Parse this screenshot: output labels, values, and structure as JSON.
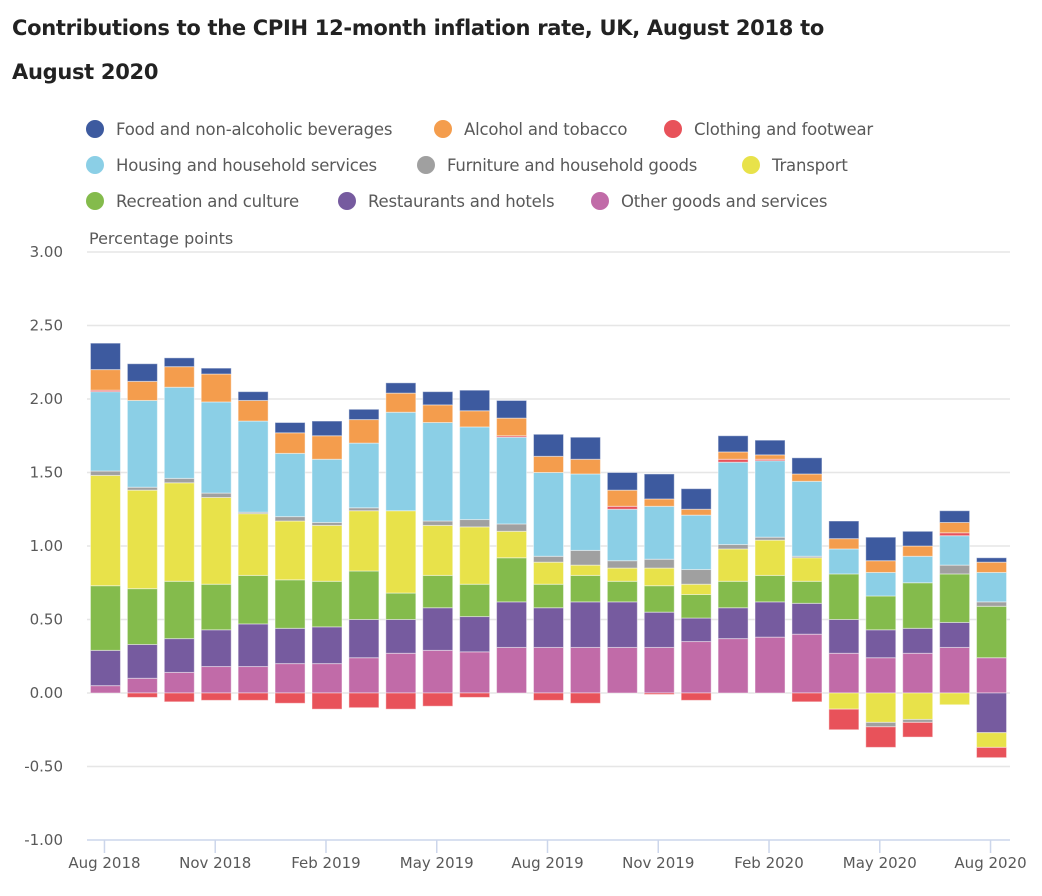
{
  "header": {
    "title": "Contributions to the CPIH 12-month inflation rate, UK, August 2018 to August 2020"
  },
  "legend": [
    {
      "name": "Food and non-alcoholic beverages",
      "color": "#3d5a9f"
    },
    {
      "name": "Alcohol and tobacco",
      "color": "#f49d4d"
    },
    {
      "name": "Clothing and footwear",
      "color": "#e8525a"
    },
    {
      "name": "Housing and household services",
      "color": "#8bcfe6"
    },
    {
      "name": "Furniture and household goods",
      "color": "#a0a0a0"
    },
    {
      "name": "Transport",
      "color": "#e8e24a"
    },
    {
      "name": "Recreation and culture",
      "color": "#84bb4c"
    },
    {
      "name": "Restaurants and hotels",
      "color": "#765b9f"
    },
    {
      "name": "Other goods and services",
      "color": "#c16ba8"
    }
  ],
  "chart_data": {
    "type": "bar",
    "stacked": true,
    "title": "Contributions to the CPIH 12-month inflation rate, UK, August 2018 to August 2020",
    "xlabel": "",
    "ylabel": "Percentage points",
    "ylim": [
      -1.0,
      3.0
    ],
    "yticks": [
      3.0,
      2.5,
      2.0,
      1.5,
      1.0,
      0.5,
      0.0,
      -0.5,
      -1.0
    ],
    "ytick_labels": [
      "3.00",
      "2.50",
      "2.00",
      "1.50",
      "1.00",
      "0.50",
      "0.00",
      "-0.50",
      "-1.00"
    ],
    "grid": true,
    "legend_position": "top",
    "categories": [
      "Aug 2018",
      "Sep 2018",
      "Oct 2018",
      "Nov 2018",
      "Dec 2018",
      "Jan 2019",
      "Feb 2019",
      "Mar 2019",
      "Apr 2019",
      "May 2019",
      "Jun 2019",
      "Jul 2019",
      "Aug 2019",
      "Sep 2019",
      "Oct 2019",
      "Nov 2019",
      "Dec 2019",
      "Jan 2020",
      "Feb 2020",
      "Mar 2020",
      "Apr 2020",
      "May 2020",
      "Jun 2020",
      "Jul 2020",
      "Aug 2020"
    ],
    "xtick_labels": [
      {
        "index": 0,
        "label": "Aug 2018"
      },
      {
        "index": 3,
        "label": "Nov 2018"
      },
      {
        "index": 6,
        "label": "Feb 2019"
      },
      {
        "index": 9,
        "label": "May 2019"
      },
      {
        "index": 12,
        "label": "Aug 2019"
      },
      {
        "index": 15,
        "label": "Nov 2019"
      },
      {
        "index": 18,
        "label": "Feb 2020"
      },
      {
        "index": 21,
        "label": "May 2020"
      },
      {
        "index": 24,
        "label": "Aug 2020"
      }
    ],
    "stack_order": [
      "Other goods and services",
      "Restaurants and hotels",
      "Recreation and culture",
      "Transport",
      "Furniture and household goods",
      "Housing and household services",
      "Clothing and footwear",
      "Alcohol and tobacco",
      "Food and non-alcoholic beverages"
    ],
    "series": [
      {
        "name": "Food and non-alcoholic beverages",
        "color": "#3d5a9f",
        "values": [
          0.18,
          0.12,
          0.06,
          0.04,
          0.06,
          0.07,
          0.1,
          0.07,
          0.07,
          0.09,
          0.14,
          0.12,
          0.15,
          0.15,
          0.12,
          0.17,
          0.14,
          0.11,
          0.1,
          0.11,
          0.12,
          0.16,
          0.1,
          0.08,
          0.03
        ]
      },
      {
        "name": "Alcohol and tobacco",
        "color": "#f49d4d",
        "values": [
          0.14,
          0.13,
          0.14,
          0.19,
          0.14,
          0.14,
          0.16,
          0.16,
          0.13,
          0.12,
          0.11,
          0.12,
          0.11,
          0.1,
          0.11,
          0.05,
          0.04,
          0.05,
          0.03,
          0.05,
          0.07,
          0.08,
          0.07,
          0.07,
          0.07
        ]
      },
      {
        "name": "Clothing and footwear",
        "color": "#e8525a",
        "values": [
          0.01,
          -0.03,
          -0.06,
          -0.05,
          -0.05,
          -0.07,
          -0.11,
          -0.1,
          -0.11,
          -0.09,
          -0.03,
          0.01,
          -0.05,
          -0.07,
          0.02,
          -0.01,
          -0.05,
          0.02,
          0.01,
          -0.06,
          -0.14,
          -0.14,
          -0.1,
          0.02,
          -0.07
        ]
      },
      {
        "name": "Housing and household services",
        "color": "#8bcfe6",
        "values": [
          0.54,
          0.59,
          0.62,
          0.62,
          0.62,
          0.43,
          0.43,
          0.44,
          0.67,
          0.67,
          0.63,
          0.59,
          0.57,
          0.52,
          0.35,
          0.36,
          0.37,
          0.56,
          0.52,
          0.51,
          0.17,
          0.16,
          0.18,
          0.2,
          0.2
        ]
      },
      {
        "name": "Furniture and household goods",
        "color": "#a0a0a0",
        "values": [
          0.03,
          0.02,
          0.03,
          0.03,
          0.01,
          0.03,
          0.02,
          0.02,
          0.0,
          0.03,
          0.05,
          0.05,
          0.04,
          0.1,
          0.05,
          0.06,
          0.1,
          0.03,
          0.02,
          0.01,
          0.0,
          -0.03,
          -0.02,
          0.06,
          0.03
        ]
      },
      {
        "name": "Transport",
        "color": "#e8e24a",
        "values": [
          0.75,
          0.67,
          0.67,
          0.59,
          0.42,
          0.4,
          0.38,
          0.41,
          0.56,
          0.34,
          0.39,
          0.18,
          0.15,
          0.07,
          0.09,
          0.12,
          0.07,
          0.22,
          0.24,
          0.16,
          -0.11,
          -0.2,
          -0.18,
          -0.08,
          -0.1
        ]
      },
      {
        "name": "Recreation and culture",
        "color": "#84bb4c",
        "values": [
          0.44,
          0.38,
          0.39,
          0.31,
          0.33,
          0.33,
          0.31,
          0.33,
          0.18,
          0.22,
          0.22,
          0.3,
          0.16,
          0.18,
          0.14,
          0.18,
          0.16,
          0.18,
          0.18,
          0.15,
          0.31,
          0.23,
          0.31,
          0.33,
          0.35
        ]
      },
      {
        "name": "Restaurants and hotels",
        "color": "#765b9f",
        "values": [
          0.24,
          0.23,
          0.23,
          0.25,
          0.29,
          0.24,
          0.25,
          0.26,
          0.23,
          0.29,
          0.24,
          0.31,
          0.27,
          0.31,
          0.31,
          0.24,
          0.16,
          0.21,
          0.24,
          0.21,
          0.23,
          0.19,
          0.17,
          0.17,
          -0.27
        ]
      },
      {
        "name": "Other goods and services",
        "color": "#c16ba8",
        "values": [
          0.05,
          0.1,
          0.14,
          0.18,
          0.18,
          0.2,
          0.2,
          0.24,
          0.27,
          0.29,
          0.28,
          0.31,
          0.31,
          0.31,
          0.31,
          0.31,
          0.35,
          0.37,
          0.38,
          0.4,
          0.27,
          0.24,
          0.27,
          0.31,
          0.24
        ]
      }
    ]
  }
}
